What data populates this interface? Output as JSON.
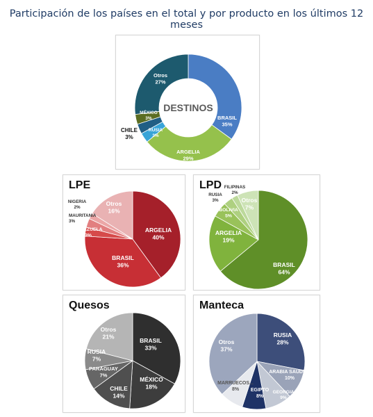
{
  "title": "Participación de los países en el total y por producto en los últimos 12 meses",
  "chart_data": [
    {
      "type": "pie",
      "title": "DESTINOS",
      "variant": "donut",
      "slices": [
        {
          "label": "BRASIL",
          "value": "35%",
          "num": 35,
          "color": "#4a7dc4"
        },
        {
          "label": "ARGELIA",
          "value": "29%",
          "num": 29,
          "color": "#95c14c"
        },
        {
          "label": "RUSIA",
          "value": "3%",
          "num": 3,
          "color": "#38a4d8"
        },
        {
          "label": "CHILE",
          "value": "3%",
          "num": 3,
          "color": "#215e84"
        },
        {
          "label": "MÉXICO",
          "value": "3%",
          "num": 3,
          "color": "#5b6d22"
        },
        {
          "label": "Otros",
          "value": "27%",
          "num": 27,
          "color": "#1d5a6e"
        }
      ]
    },
    {
      "type": "pie",
      "title": "LPE",
      "slices": [
        {
          "label": "ARGELIA",
          "value": "40%",
          "num": 40,
          "color": "#a5202a"
        },
        {
          "label": "BRASIL",
          "value": "36%",
          "num": 36,
          "color": "#c72f35"
        },
        {
          "label": "VENEZUELA",
          "value": "3%",
          "num": 3,
          "color": "#d64a4a"
        },
        {
          "label": "MAURITANIA",
          "value": "3%",
          "num": 3,
          "color": "#e27f80"
        },
        {
          "label": "NIGERIA",
          "value": "2%",
          "num": 2,
          "color": "#eba6a6"
        },
        {
          "label": "Otros",
          "value": "16%",
          "num": 16,
          "color": "#e9b2b3"
        }
      ]
    },
    {
      "type": "pie",
      "title": "LPD",
      "slices": [
        {
          "label": "BRASIL",
          "value": "64%",
          "num": 64,
          "color": "#5f8f28"
        },
        {
          "label": "ARGELIA",
          "value": "19%",
          "num": 19,
          "color": "#80b33d"
        },
        {
          "label": "BOLIVIA",
          "value": "5%",
          "num": 5,
          "color": "#99c25a"
        },
        {
          "label": "RUSIA",
          "value": "3%",
          "num": 3,
          "color": "#aed080"
        },
        {
          "label": "FILIPINAS",
          "value": "2%",
          "num": 2,
          "color": "#bcd99b"
        },
        {
          "label": "Otros",
          "value": "7%",
          "num": 7,
          "color": "#cde3b6"
        }
      ]
    },
    {
      "type": "pie",
      "title": "Quesos",
      "slices": [
        {
          "label": "BRASIL",
          "value": "33%",
          "num": 33,
          "color": "#2f2f2f"
        },
        {
          "label": "MÉXICO",
          "value": "18%",
          "num": 18,
          "color": "#3d3d3d"
        },
        {
          "label": "CHILE",
          "value": "14%",
          "num": 14,
          "color": "#4f4f4f"
        },
        {
          "label": "PARAGUAY",
          "value": "7%",
          "num": 7,
          "color": "#666666"
        },
        {
          "label": "RUSIA",
          "value": "7%",
          "num": 7,
          "color": "#8a8a8a"
        },
        {
          "label": "Otros",
          "value": "21%",
          "num": 21,
          "color": "#b5b5b5"
        }
      ]
    },
    {
      "type": "pie",
      "title": "Manteca",
      "slices": [
        {
          "label": "RUSIA",
          "value": "28%",
          "num": 28,
          "color": "#3d4e7a"
        },
        {
          "label": "ARABIA SAUDITA",
          "value": "10%",
          "num": 10,
          "color": "#9aa3b8"
        },
        {
          "label": "GEORGIA",
          "value": "9%",
          "num": 9,
          "color": "#c2c8d4"
        },
        {
          "label": "EGIPTO",
          "value": "8%",
          "num": 8,
          "color": "#1e3266"
        },
        {
          "label": "MARRUECOS...",
          "value": "8%",
          "num": 8,
          "color": "#e7e9ee"
        },
        {
          "label": "Otros",
          "value": "37%",
          "num": 37,
          "color": "#9ca6bd"
        }
      ]
    }
  ]
}
